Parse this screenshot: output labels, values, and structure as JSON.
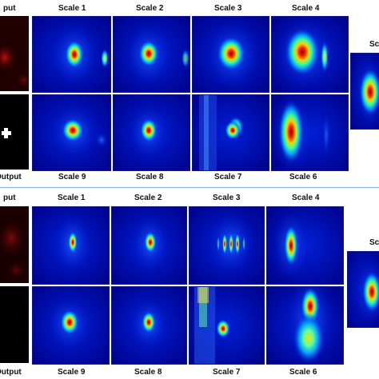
{
  "figure_a": {
    "input_label": "put",
    "output_label": "Output",
    "top_row": [
      "Scale 1",
      "Scale 2",
      "Scale 3",
      "Scale 4"
    ],
    "bottom_row": [
      "Scale 9",
      "Scale 8",
      "Scale 7",
      "Scale 6"
    ]
  },
  "figure_b": {
    "input_label": "put",
    "output_label": "Output",
    "top_row": [
      "Scale 1",
      "Scale 2",
      "Scale 3",
      "Scale 4"
    ],
    "bottom_row": [
      "Scale 9",
      "Scale 8",
      "Scale 7",
      "Scale 6"
    ],
    "side_label": "Sc"
  },
  "colors": {
    "background_blue": "#00008a",
    "divider": "#7fb3e6"
  }
}
